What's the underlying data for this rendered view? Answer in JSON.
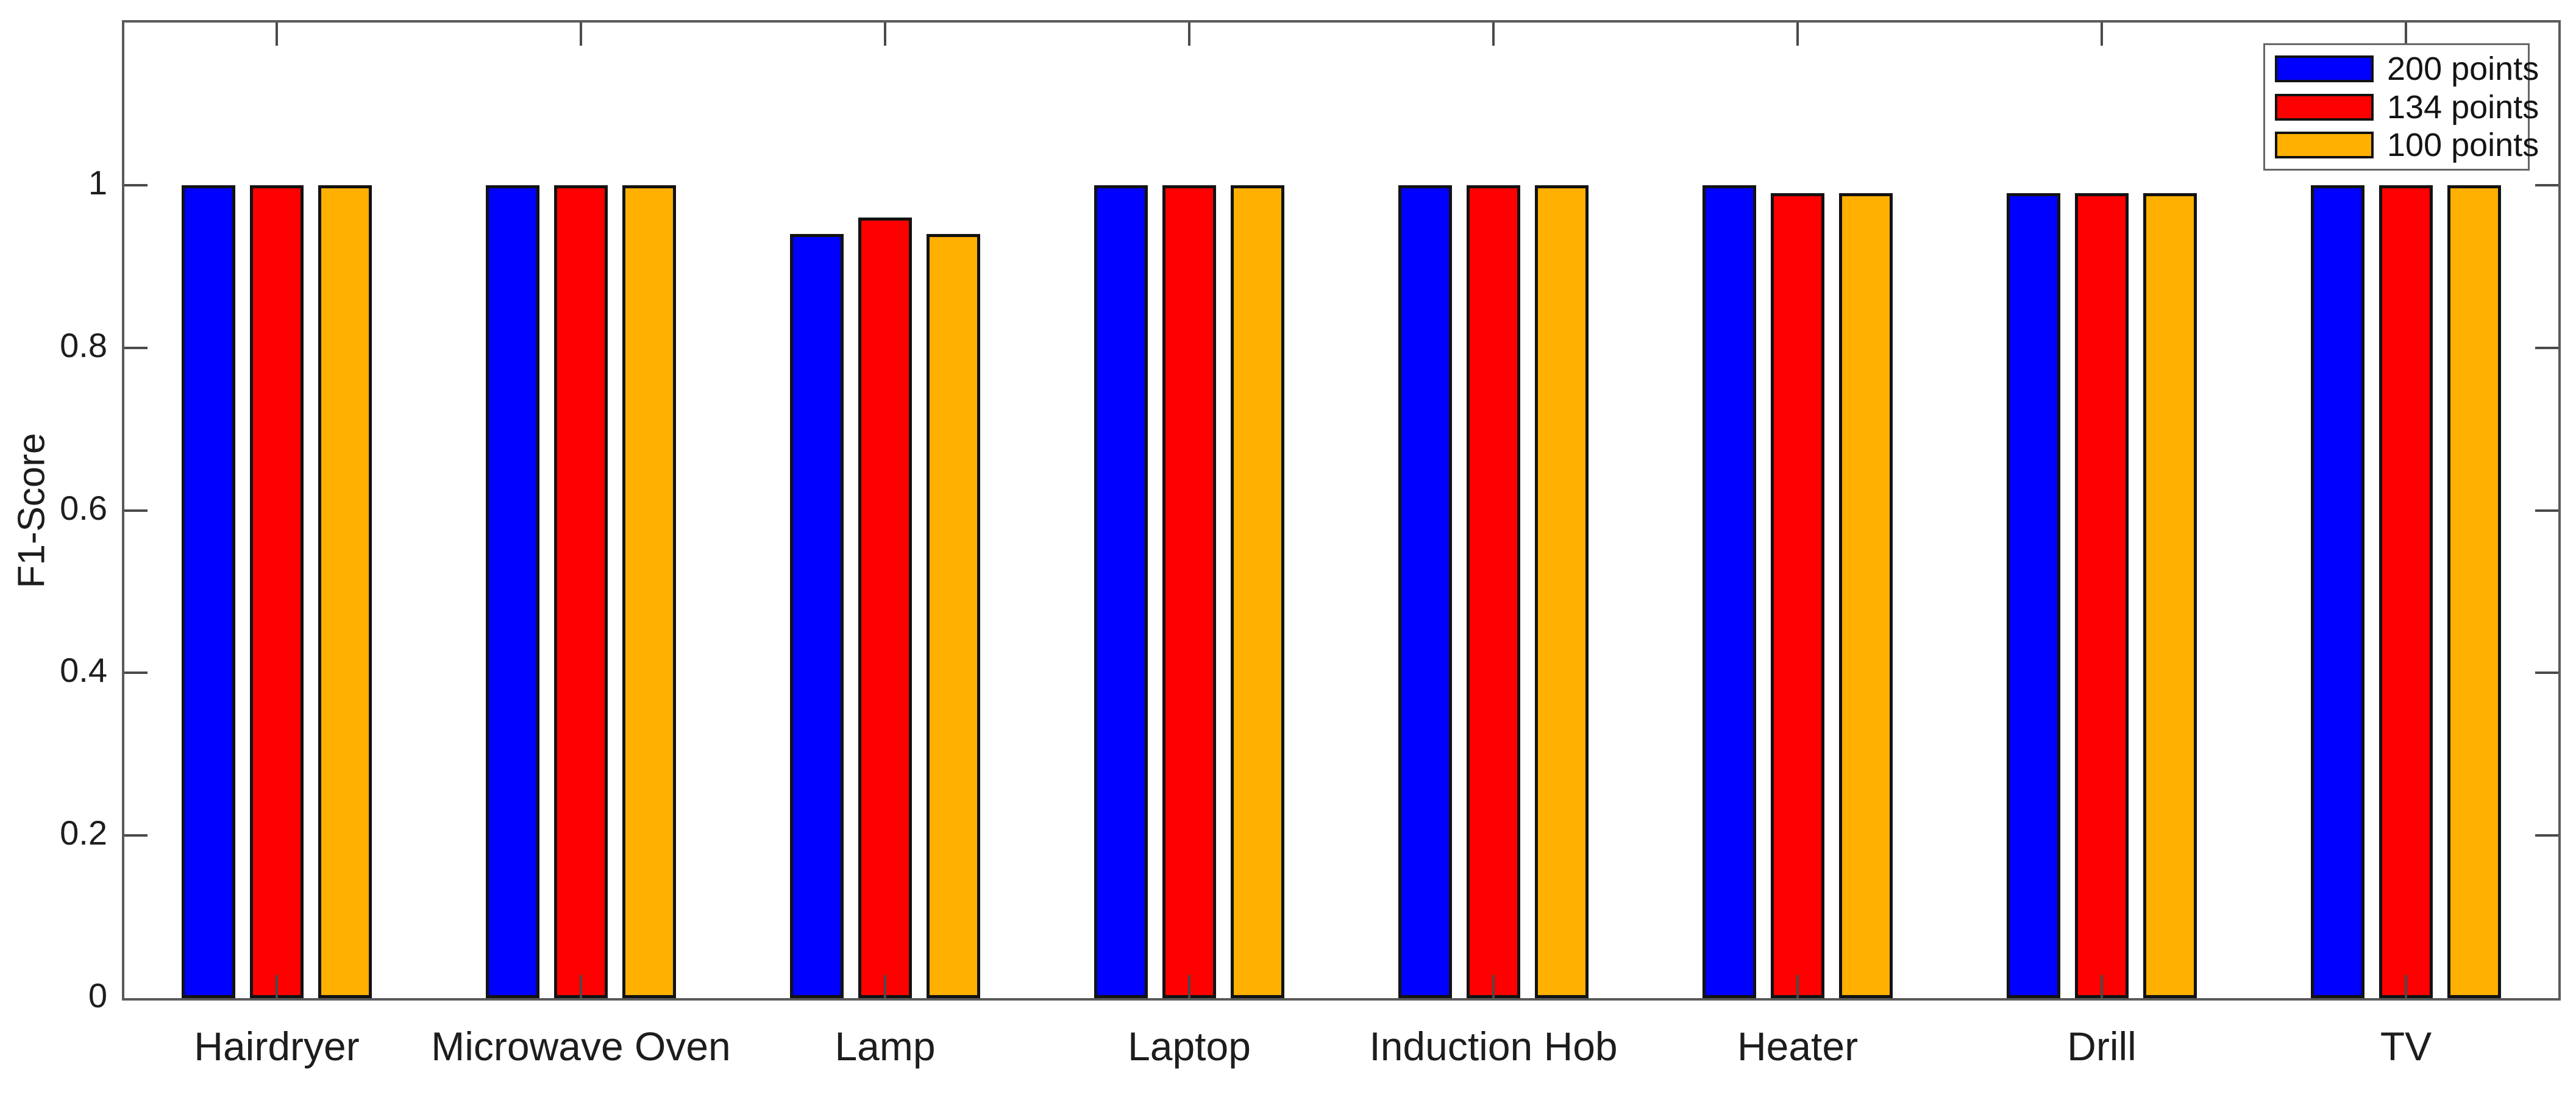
{
  "chart_data": {
    "type": "bar",
    "title": "",
    "xlabel": "",
    "ylabel": "F1-Score",
    "categories": [
      "Hairdryer",
      "Microwave Oven",
      "Lamp",
      "Laptop",
      "Induction Hob",
      "Heater",
      "Drill",
      "TV"
    ],
    "series": [
      {
        "name": "200 points",
        "color": "#0000FF",
        "values": [
          1.0,
          1.0,
          0.94,
          1.0,
          1.0,
          1.0,
          0.99,
          1.0
        ]
      },
      {
        "name": "134 points",
        "color": "#FF0000",
        "values": [
          1.0,
          1.0,
          0.96,
          1.0,
          1.0,
          0.99,
          0.99,
          1.0
        ]
      },
      {
        "name": "100 points",
        "color": "#FFB000",
        "values": [
          1.0,
          1.0,
          0.94,
          1.0,
          1.0,
          0.99,
          0.99,
          1.0
        ]
      }
    ],
    "ylim": [
      0,
      1.2
    ],
    "yticks": [
      0,
      0.2,
      0.4,
      0.6,
      0.8,
      1
    ],
    "ytick_labels": [
      "0",
      "0.2",
      "0.4",
      "0.6",
      "0.8",
      "1"
    ],
    "grid": false,
    "legend_position": "top-right",
    "bar_edge_color": "#121212",
    "axis_color": "#5a5a5a",
    "background_color": "#ffffff"
  }
}
